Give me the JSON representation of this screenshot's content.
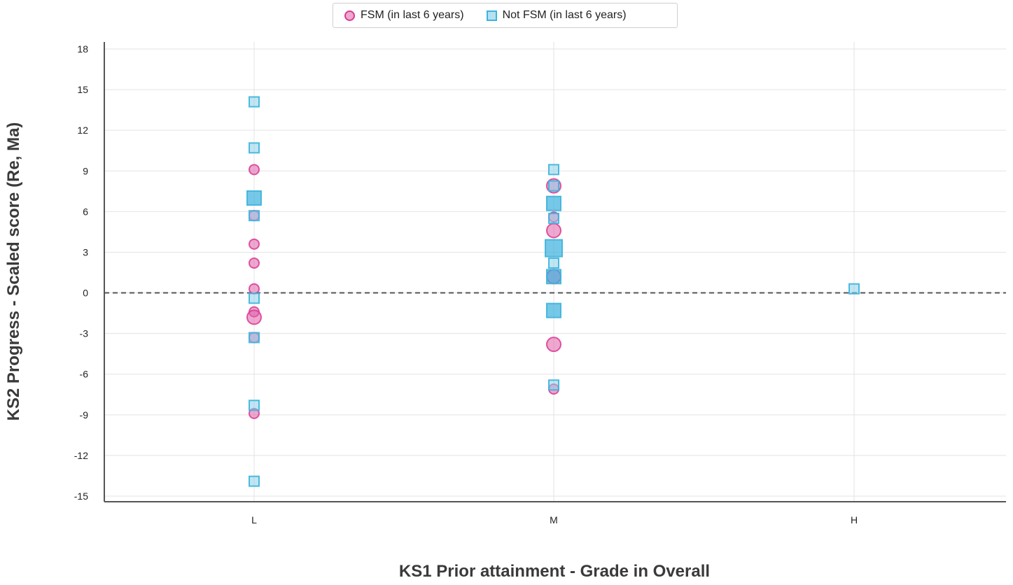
{
  "chart_data": {
    "type": "scatter",
    "xlabel": "KS1 Prior attainment - Grade in Overall",
    "ylabel": "KS2 Progress - Scaled score (Re, Ma)",
    "categories": [
      "L",
      "M",
      "H"
    ],
    "y_ticks": [
      "18",
      "15",
      "12",
      "9",
      "6",
      "3",
      "0",
      "-3",
      "-6",
      "-9",
      "-12",
      "-15"
    ],
    "ylim": [
      -15,
      18
    ],
    "grid": true,
    "reference_line": {
      "y": 0,
      "style": "dashed"
    },
    "legend_position": "top-center",
    "series": [
      {
        "name": "FSM (in last 6 years)",
        "marker": "circle",
        "color": "#d93a94",
        "points": [
          {
            "x": "L",
            "y": 9.1,
            "size": 1
          },
          {
            "x": "L",
            "y": 5.7,
            "size": 1
          },
          {
            "x": "L",
            "y": 3.6,
            "size": 1
          },
          {
            "x": "L",
            "y": 2.2,
            "size": 1
          },
          {
            "x": "L",
            "y": 0.3,
            "size": 1
          },
          {
            "x": "L",
            "y": -1.4,
            "size": 1
          },
          {
            "x": "L",
            "y": -1.8,
            "size": 2
          },
          {
            "x": "L",
            "y": -3.3,
            "size": 1
          },
          {
            "x": "L",
            "y": -8.9,
            "size": 1
          },
          {
            "x": "M",
            "y": 7.9,
            "size": 2
          },
          {
            "x": "M",
            "y": 5.6,
            "size": 1
          },
          {
            "x": "M",
            "y": 4.6,
            "size": 2
          },
          {
            "x": "M",
            "y": 1.2,
            "size": 2
          },
          {
            "x": "M",
            "y": -3.8,
            "size": 2
          },
          {
            "x": "M",
            "y": -7.1,
            "size": 1
          }
        ]
      },
      {
        "name": "Not FSM (in last 6 years)",
        "marker": "square",
        "color": "#3cb4dd",
        "points": [
          {
            "x": "L",
            "y": 14.1,
            "size": 1
          },
          {
            "x": "L",
            "y": 10.7,
            "size": 1
          },
          {
            "x": "L",
            "y": 7.0,
            "size": 2
          },
          {
            "x": "L",
            "y": 5.7,
            "size": 1
          },
          {
            "x": "L",
            "y": -0.4,
            "size": 1
          },
          {
            "x": "L",
            "y": -3.3,
            "size": 1
          },
          {
            "x": "L",
            "y": -8.3,
            "size": 1
          },
          {
            "x": "L",
            "y": -13.9,
            "size": 1
          },
          {
            "x": "M",
            "y": 9.1,
            "size": 1
          },
          {
            "x": "M",
            "y": 7.9,
            "size": 1
          },
          {
            "x": "M",
            "y": 6.6,
            "size": 2
          },
          {
            "x": "M",
            "y": 5.5,
            "size": 1
          },
          {
            "x": "M",
            "y": 3.3,
            "size": 3
          },
          {
            "x": "M",
            "y": 2.2,
            "size": 1
          },
          {
            "x": "M",
            "y": 1.2,
            "size": 2
          },
          {
            "x": "M",
            "y": -1.3,
            "size": 2
          },
          {
            "x": "M",
            "y": -6.8,
            "size": 1
          },
          {
            "x": "H",
            "y": 0.3,
            "size": 1
          }
        ]
      }
    ]
  }
}
